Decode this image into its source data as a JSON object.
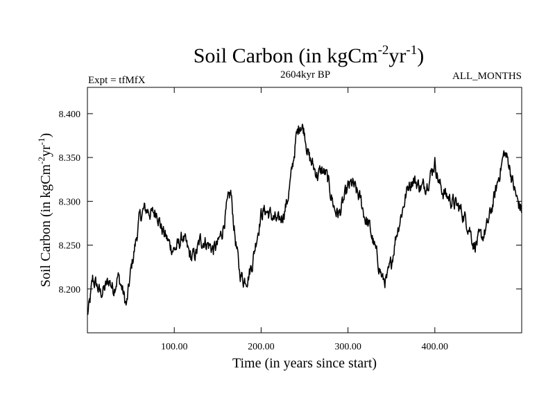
{
  "header": {
    "title_main": "Soil Carbon (in kgCm",
    "title_sup1": "-2",
    "title_mid": "yr",
    "title_sup2": "-1",
    "title_end": ")",
    "left_label": "Expt = tfMfX",
    "center_label": "2604kyr BP",
    "right_label": "ALL_MONTHS"
  },
  "chart_data": {
    "type": "line",
    "title": "Soil Carbon (in kgCm-2yr-1)",
    "xlabel": "Time (in years since start)",
    "ylabel": "Soil Carbon (in kgCm-2yr-1)",
    "xlim": [
      0,
      500
    ],
    "ylim": [
      8.15,
      8.43
    ],
    "xticks": [
      100,
      200,
      300,
      400
    ],
    "xtick_labels": [
      "100.00",
      "200.00",
      "300.00",
      "400.00"
    ],
    "yticks": [
      8.2,
      8.25,
      8.3,
      8.35,
      8.4
    ],
    "ytick_labels": [
      "8.200",
      "8.250",
      "8.300",
      "8.350",
      "8.400"
    ],
    "grid": false,
    "series": [
      {
        "name": "Soil Carbon",
        "x": [
          0,
          3,
          6,
          10,
          15,
          20,
          25,
          30,
          35,
          40,
          45,
          50,
          55,
          60,
          65,
          70,
          75,
          80,
          85,
          90,
          95,
          100,
          105,
          110,
          115,
          120,
          125,
          130,
          135,
          140,
          145,
          150,
          155,
          160,
          165,
          170,
          175,
          180,
          185,
          190,
          195,
          200,
          205,
          210,
          215,
          220,
          225,
          230,
          235,
          240,
          245,
          250,
          255,
          260,
          265,
          270,
          275,
          280,
          285,
          290,
          295,
          300,
          305,
          310,
          315,
          320,
          325,
          330,
          335,
          340,
          345,
          350,
          355,
          360,
          365,
          370,
          375,
          380,
          385,
          390,
          395,
          400,
          405,
          410,
          415,
          420,
          425,
          430,
          435,
          440,
          445,
          450,
          455,
          460,
          465,
          470,
          475,
          480,
          485,
          490,
          495,
          500
        ],
        "values": [
          8.17,
          8.185,
          8.21,
          8.205,
          8.195,
          8.2,
          8.21,
          8.2,
          8.215,
          8.2,
          8.18,
          8.22,
          8.25,
          8.28,
          8.29,
          8.29,
          8.285,
          8.29,
          8.27,
          8.26,
          8.25,
          8.245,
          8.25,
          8.26,
          8.245,
          8.235,
          8.24,
          8.255,
          8.255,
          8.25,
          8.245,
          8.25,
          8.265,
          8.29,
          8.31,
          8.26,
          8.22,
          8.21,
          8.215,
          8.23,
          8.26,
          8.285,
          8.29,
          8.285,
          8.28,
          8.275,
          8.285,
          8.3,
          8.33,
          8.37,
          8.39,
          8.38,
          8.35,
          8.34,
          8.33,
          8.335,
          8.33,
          8.31,
          8.29,
          8.285,
          8.3,
          8.315,
          8.32,
          8.31,
          8.3,
          8.28,
          8.27,
          8.25,
          8.23,
          8.21,
          8.21,
          8.23,
          8.26,
          8.28,
          8.3,
          8.32,
          8.325,
          8.32,
          8.315,
          8.32,
          8.33,
          8.345,
          8.32,
          8.31,
          8.305,
          8.3,
          8.295,
          8.29,
          8.28,
          8.27,
          8.25,
          8.255,
          8.26,
          8.27,
          8.29,
          8.31,
          8.335,
          8.355,
          8.345,
          8.32,
          8.3,
          8.29
        ]
      }
    ]
  }
}
